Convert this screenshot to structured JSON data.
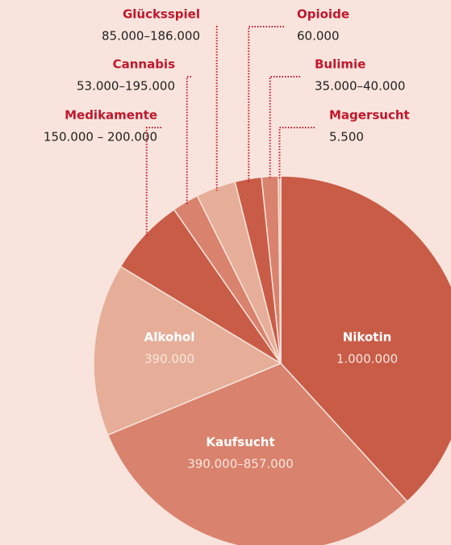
{
  "chart_data": {
    "type": "pie",
    "categories": [
      "Nikotin",
      "Kaufsucht",
      "Alkohol",
      "Medikamente",
      "Cannabis",
      "Glücksspiel",
      "Opioide",
      "Bulimie",
      "Magersucht"
    ],
    "values": [
      1000000,
      800000,
      390000,
      175000,
      60000,
      90000,
      60000,
      37500,
      5500
    ],
    "value_labels": [
      "1.000.000",
      "390.000–857.000",
      "390.000",
      "150.000 – 200.000",
      "53.000–195.000",
      "85.000–186.000",
      "60.000",
      "35.000–40.000",
      "5.500"
    ],
    "colors": [
      "#c95c47",
      "#d9826d",
      "#e6ae98",
      "#c95c47",
      "#d9826d",
      "#e6ae98",
      "#c95c47",
      "#d9826d",
      "#e6ae98"
    ]
  }
}
